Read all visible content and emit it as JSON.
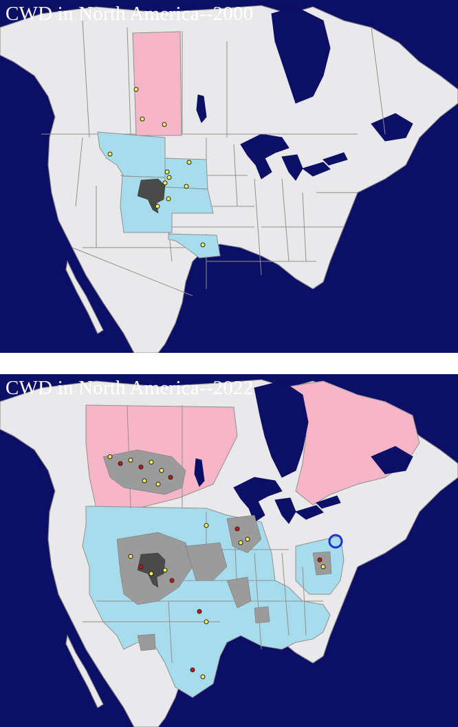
{
  "panels": [
    {
      "title": "CWD in North America--2000"
    },
    {
      "title": "CWD in North America--2022"
    }
  ],
  "colors": {
    "ocean": "#0c0f66",
    "land": "#e9e9eb",
    "affected_province": "#f6b6c8",
    "affected_state": "#a7dced",
    "affected_county_light": "#9b9b9b",
    "affected_county_dark": "#4a4a4a",
    "wild_case_dot": "#f4f05a",
    "captive_case_dot": "#c4171b",
    "highlight_circle": "#1a2fd6"
  },
  "legend_semantics": {
    "pink": "affected Canadian provinces",
    "light-blue": "affected U.S. states",
    "gray": "affected counties",
    "yellow-dot": "case location",
    "red-dot": "case location",
    "blue-circle": "highlighted location"
  }
}
